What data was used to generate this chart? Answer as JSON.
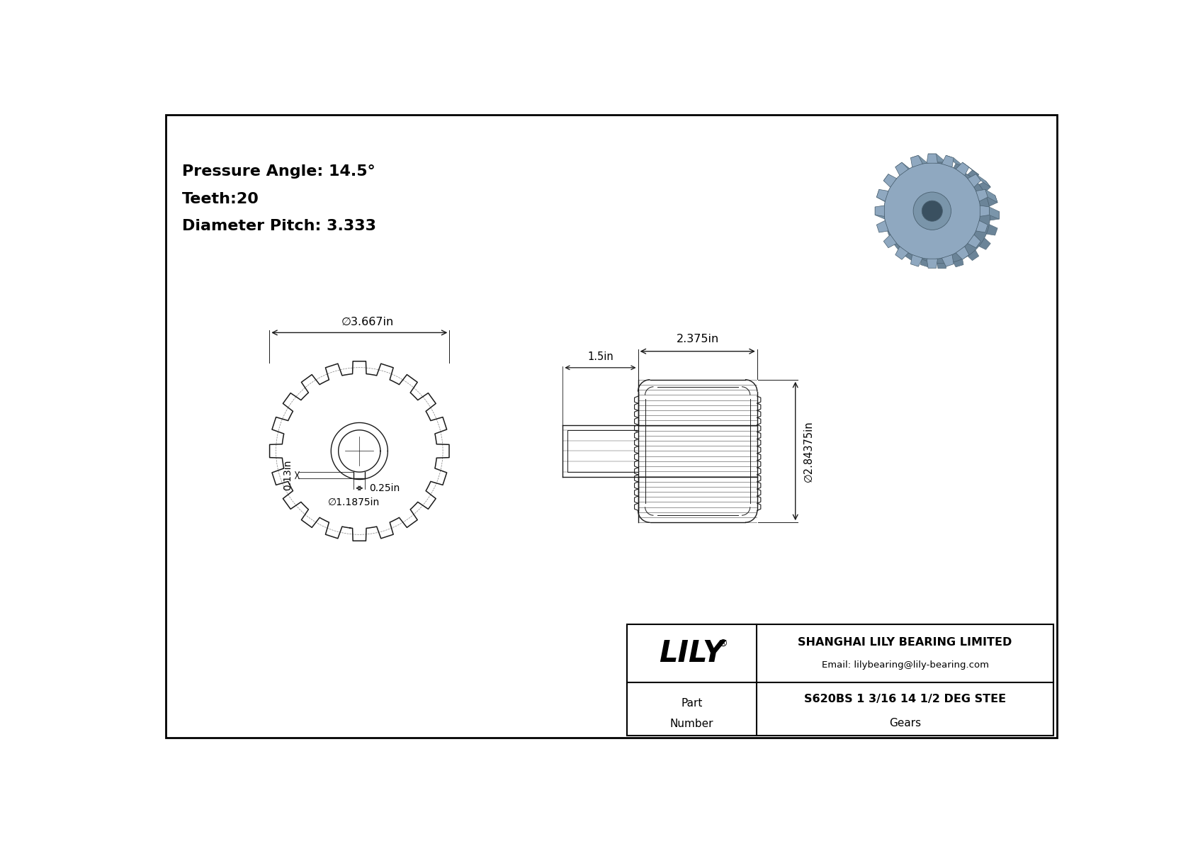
{
  "bg_color": "#ffffff",
  "line_color": "#1a1a1a",
  "title_text": [
    "Pressure Angle: 14.5°",
    "Teeth:20",
    "Diameter Pitch: 3.333"
  ],
  "dims": {
    "outer_diameter": "3.667in",
    "hub_diameter": "1.1875in",
    "face_width": "2.375in",
    "hub_length": "1.5in",
    "keyway_depth": "0.13in",
    "keyway_width": "0.25in",
    "side_diameter": "2.84375in"
  },
  "company": "SHANGHAI LILY BEARING LIMITED",
  "email": "Email: lilybearing@lily-bearing.com",
  "part_number": "S620BS 1 3/16 14 1/2 DEG STEE",
  "part_type": "Gears",
  "logo": "LILY"
}
